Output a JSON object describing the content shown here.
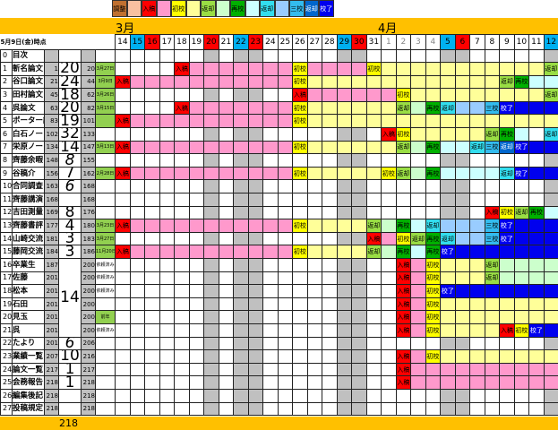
{
  "legend": [
    {
      "label": "調整",
      "color": "#c07030"
    },
    {
      "label": "",
      "color": "#f8c0a0"
    },
    {
      "label": "入稿",
      "color": "#ff0000"
    },
    {
      "label": "",
      "color": "#ff99cc"
    },
    {
      "label": "初校",
      "color": "#ffff00"
    },
    {
      "label": "",
      "color": "#ffff99"
    },
    {
      "label": "返却",
      "color": "#99dd44"
    },
    {
      "label": "",
      "color": "#ccffcc"
    },
    {
      "label": "再校",
      "color": "#00b000"
    },
    {
      "label": "",
      "color": "#ccffff"
    },
    {
      "label": "返却",
      "color": "#33ddee"
    },
    {
      "label": "",
      "color": "#99ccff"
    },
    {
      "label": "三校",
      "color": "#33bbee"
    },
    {
      "label": "返却",
      "color": "#0066cc"
    },
    {
      "label": "校了",
      "color": "#0000ee"
    }
  ],
  "months": {
    "march": "3月",
    "april": "4月"
  },
  "header_label": "5月9日(金)時点",
  "dates": [
    "14",
    "15",
    "16",
    "17",
    "18",
    "19",
    "20",
    "21",
    "22",
    "23",
    "24",
    "25",
    "26",
    "27",
    "28",
    "29",
    "30",
    "31",
    "1",
    "2",
    "3",
    "4",
    "5",
    "6",
    "7",
    "8",
    "9",
    "10",
    "11",
    "12"
  ],
  "date_colors": {
    "1": "#00b0f0",
    "2": "#ff0000",
    "6": "#ff0000",
    "8": "#00b0f0",
    "9": "#ff0000",
    "15": "#00b0f0",
    "16": "#ff0000",
    "22": "#00b0f0",
    "23": "#ff0000",
    "29": "#00b0f0"
  },
  "gray_cols": [
    6,
    8,
    9,
    15,
    16,
    22,
    23,
    29
  ],
  "colors": {
    "R": "#ff0000",
    "P": "#ff99cc",
    "Y": "#ffff00",
    "LY": "#ffff99",
    "G": "#99dd44",
    "PG": "#ccffcc",
    "DG": "#00b000",
    "LC": "#ccffff",
    "C": "#33ddee",
    "LB": "#99ccff",
    "T": "#33bbee",
    "DB": "#0066cc",
    "B": "#0000ee",
    "gray": "#c0c0c0",
    "label_green": "#92d050",
    "bar": "#ffc000"
  },
  "rows": [
    {
      "idx": "0",
      "name": "目次",
      "start": "",
      "count": "",
      "end": "",
      "label": "",
      "green": false,
      "spans": []
    },
    {
      "idx": "1",
      "name": "斬名論文",
      "start": "1",
      "count": "20",
      "end": "20",
      "label": "3月27日",
      "green": true,
      "spans": [
        [
          4,
          4,
          "R",
          "入稿"
        ],
        [
          5,
          11,
          "P"
        ],
        [
          12,
          12,
          "Y",
          "初校"
        ],
        [
          13,
          16,
          "P"
        ],
        [
          17,
          17,
          "Y",
          "初校"
        ],
        [
          18,
          28,
          "LY"
        ],
        [
          29,
          29,
          "G",
          "返却"
        ]
      ]
    },
    {
      "idx": "2",
      "name": "谷口論文",
      "start": "21",
      "count": "24",
      "end": "44",
      "label": "3月9日",
      "green": true,
      "spans": [
        [
          0,
          0,
          "R",
          "入稿"
        ],
        [
          1,
          11,
          "P"
        ],
        [
          12,
          12,
          "Y",
          "初校"
        ],
        [
          13,
          25,
          "LY"
        ],
        [
          26,
          26,
          "G",
          "返却"
        ],
        [
          27,
          27,
          "DG",
          "再校"
        ],
        [
          28,
          29,
          "LC"
        ]
      ]
    },
    {
      "idx": "3",
      "name": "田村論文",
      "start": "45",
      "count": "18",
      "end": "62",
      "label": "3月26日",
      "green": true,
      "spans": [
        [
          12,
          12,
          "R",
          "入稿"
        ],
        [
          13,
          18,
          "P"
        ],
        [
          19,
          19,
          "Y",
          "初校"
        ],
        [
          20,
          28,
          "LY"
        ],
        [
          29,
          29,
          "G",
          "返却"
        ]
      ]
    },
    {
      "idx": "4",
      "name": "呉論文",
      "start": "63",
      "count": "20",
      "end": "82",
      "label": "3月15日",
      "green": true,
      "spans": [
        [
          4,
          4,
          "R",
          "入稿"
        ],
        [
          5,
          11,
          "P"
        ],
        [
          12,
          12,
          "Y",
          "初校"
        ],
        [
          13,
          18,
          "LY"
        ],
        [
          19,
          19,
          "G",
          "返却"
        ],
        [
          20,
          20,
          "PG"
        ],
        [
          21,
          21,
          "DG",
          "再校"
        ],
        [
          22,
          22,
          "C",
          "返却"
        ],
        [
          23,
          24,
          "LB"
        ],
        [
          25,
          25,
          "T",
          "三校"
        ],
        [
          26,
          29,
          "B",
          "校了"
        ]
      ]
    },
    {
      "idx": "5",
      "name": "ポーター論文",
      "start": "83",
      "count": "19",
      "end": "101",
      "label": "",
      "green": true,
      "spans": [
        [
          0,
          0,
          "R",
          "入稿"
        ],
        [
          1,
          11,
          "P"
        ],
        [
          12,
          12,
          "Y",
          "初校"
        ],
        [
          13,
          29,
          "LY"
        ]
      ]
    },
    {
      "idx": "6",
      "name": "白石ノート",
      "start": "102",
      "count": "32",
      "end": "133",
      "label": "",
      "green": false,
      "spans": [
        [
          18,
          18,
          "R",
          "入稿"
        ],
        [
          19,
          19,
          "Y",
          "初校"
        ],
        [
          20,
          24,
          "LY"
        ],
        [
          25,
          25,
          "G",
          "返却"
        ],
        [
          26,
          26,
          "DG",
          "再校"
        ],
        [
          27,
          27,
          "LC"
        ],
        [
          29,
          29,
          "C",
          "返却"
        ]
      ]
    },
    {
      "idx": "7",
      "name": "栄原ノート",
      "start": "134",
      "count": "14",
      "end": "147",
      "label": "3月13日",
      "green": true,
      "spans": [
        [
          0,
          0,
          "R",
          "入稿"
        ],
        [
          1,
          11,
          "P"
        ],
        [
          12,
          12,
          "Y",
          "初校"
        ],
        [
          13,
          18,
          "LY"
        ],
        [
          19,
          19,
          "G",
          "返却"
        ],
        [
          20,
          20,
          "PG"
        ],
        [
          21,
          21,
          "DG",
          "再校"
        ],
        [
          22,
          23,
          "LC"
        ],
        [
          24,
          24,
          "C",
          "返却"
        ],
        [
          25,
          25,
          "T",
          "三校"
        ],
        [
          26,
          26,
          "DB",
          "返却"
        ],
        [
          27,
          29,
          "B",
          "校了"
        ]
      ]
    },
    {
      "idx": "8",
      "name": "齊藤余暇",
      "start": "148",
      "count": "8",
      "end": "155",
      "label": "",
      "green": false,
      "spans": []
    },
    {
      "idx": "9",
      "name": "谷稿介",
      "start": "156",
      "count": "7",
      "end": "162",
      "label": "2月28日",
      "green": true,
      "spans": [
        [
          0,
          0,
          "R",
          "入稿"
        ],
        [
          1,
          11,
          "P"
        ],
        [
          12,
          12,
          "Y",
          "初校"
        ],
        [
          13,
          17,
          "LY"
        ],
        [
          18,
          18,
          "Y",
          "初校"
        ],
        [
          19,
          19,
          "G",
          "返却"
        ],
        [
          20,
          20,
          "PG"
        ],
        [
          21,
          21,
          "DG",
          "再校"
        ],
        [
          22,
          25,
          "LC"
        ],
        [
          26,
          26,
          "C",
          "返却"
        ],
        [
          27,
          29,
          "B",
          "校了"
        ]
      ]
    },
    {
      "idx": "10",
      "name": "合同調査",
      "start": "163",
      "count": "6",
      "end": "168",
      "label": "",
      "green": false,
      "spans": []
    },
    {
      "idx": "11",
      "name": "齊藤講演",
      "start": "168",
      "count": "",
      "end": "168",
      "label": "",
      "green": false,
      "spans": []
    },
    {
      "idx": "12",
      "name": "吉田測量",
      "start": "169",
      "count": "8",
      "end": "176",
      "label": "",
      "green": false,
      "spans": [
        [
          25,
          25,
          "R",
          "入稿"
        ],
        [
          26,
          26,
          "Y",
          "初校"
        ],
        [
          27,
          27,
          "G",
          "返却"
        ],
        [
          28,
          28,
          "DG",
          "再校"
        ],
        [
          29,
          29,
          "LC"
        ]
      ]
    },
    {
      "idx": "13",
      "name": "齊藤書評",
      "start": "177",
      "count": "4",
      "end": "180",
      "label": "3月23日",
      "green": true,
      "spans": [
        [
          0,
          0,
          "R",
          "入稿"
        ],
        [
          1,
          11,
          "P"
        ],
        [
          12,
          12,
          "Y",
          "初校"
        ],
        [
          13,
          16,
          "LY"
        ],
        [
          17,
          17,
          "G",
          "返却"
        ],
        [
          18,
          18,
          "PG"
        ],
        [
          19,
          19,
          "DG",
          "再校"
        ],
        [
          20,
          20,
          "LC"
        ],
        [
          21,
          21,
          "C",
          "返却"
        ],
        [
          22,
          24,
          "LB"
        ],
        [
          25,
          25,
          "T",
          "三校"
        ],
        [
          26,
          29,
          "B",
          "校了"
        ]
      ]
    },
    {
      "idx": "14",
      "name": "山崎交流",
      "start": "181",
      "count": "3",
      "end": "183",
      "label": "3月27日",
      "green": true,
      "spans": [
        [
          17,
          17,
          "R",
          "入稿"
        ],
        [
          18,
          18,
          "P"
        ],
        [
          19,
          19,
          "Y",
          "初校"
        ],
        [
          20,
          20,
          "G",
          "返却"
        ],
        [
          21,
          21,
          "DG",
          "再校"
        ],
        [
          22,
          22,
          "C",
          "返却"
        ],
        [
          23,
          24,
          "LB"
        ],
        [
          25,
          25,
          "T",
          "三校"
        ],
        [
          26,
          29,
          "B",
          "校了"
        ]
      ]
    },
    {
      "idx": "15",
      "name": "藤岡交流",
      "start": "184",
      "count": "3",
      "end": "186",
      "label": "11月20日",
      "green": true,
      "spans": [
        [
          0,
          0,
          "R",
          "入稿"
        ],
        [
          1,
          11,
          "P"
        ],
        [
          12,
          12,
          "Y",
          "初校"
        ],
        [
          13,
          16,
          "LY"
        ],
        [
          17,
          17,
          "G",
          "返却"
        ],
        [
          18,
          18,
          "PG"
        ],
        [
          19,
          19,
          "DG",
          "再校"
        ],
        [
          20,
          20,
          "LC"
        ],
        [
          21,
          21,
          "DG",
          "再校"
        ],
        [
          22,
          29,
          "B",
          "校了"
        ]
      ]
    },
    {
      "idx": "16",
      "name": "卒業生",
      "start": "187",
      "count": "14",
      "end": "200",
      "label": "依頼済み",
      "green": false,
      "spans": [
        [
          19,
          19,
          "R",
          "入稿"
        ],
        [
          20,
          20,
          "P"
        ],
        [
          21,
          21,
          "Y",
          "初校"
        ],
        [
          22,
          24,
          "LY"
        ],
        [
          25,
          25,
          "G",
          "返却"
        ],
        [
          26,
          29,
          "PG"
        ]
      ]
    },
    {
      "idx": "17",
      "name": "佐藤",
      "start": "201",
      "count": "",
      "end": "200",
      "label": "依頼済み",
      "green": false,
      "spans": [
        [
          19,
          19,
          "R",
          "入稿"
        ],
        [
          20,
          20,
          "P"
        ],
        [
          21,
          21,
          "Y",
          "初校"
        ],
        [
          22,
          24,
          "LY"
        ],
        [
          25,
          25,
          "G",
          "返却"
        ],
        [
          26,
          29,
          "PG"
        ]
      ]
    },
    {
      "idx": "18",
      "name": "松本",
      "start": "201",
      "count": "",
      "end": "200",
      "label": "依頼済み",
      "green": false,
      "spans": [
        [
          19,
          19,
          "R",
          "入稿"
        ],
        [
          20,
          20,
          "P"
        ],
        [
          21,
          21,
          "Y",
          "初校"
        ],
        [
          22,
          29,
          "B",
          "校了"
        ]
      ]
    },
    {
      "idx": "19",
      "name": "石田",
      "start": "201",
      "count": "",
      "end": "200",
      "label": "",
      "green": false,
      "spans": [
        [
          19,
          19,
          "R",
          "入稿"
        ],
        [
          20,
          20,
          "P"
        ],
        [
          21,
          21,
          "Y",
          "初校"
        ],
        [
          22,
          29,
          "LY"
        ]
      ]
    },
    {
      "idx": "20",
      "name": "見玉",
      "start": "201",
      "count": "",
      "end": "200",
      "label": "前年",
      "green": true,
      "spans": [
        [
          19,
          19,
          "R",
          "入稿"
        ],
        [
          20,
          20,
          "P"
        ],
        [
          21,
          21,
          "Y",
          "初校"
        ],
        [
          22,
          29,
          "LY"
        ]
      ]
    },
    {
      "idx": "21",
      "name": "呉",
      "start": "201",
      "count": "",
      "end": "200",
      "label": "依頼済み",
      "green": false,
      "spans": [
        [
          19,
          19,
          "R",
          "入稿"
        ],
        [
          20,
          20,
          "P"
        ],
        [
          21,
          21,
          "Y",
          "初校"
        ],
        [
          22,
          25,
          "LY"
        ],
        [
          26,
          26,
          "R",
          "入稿"
        ],
        [
          27,
          27,
          "Y",
          "初校"
        ],
        [
          28,
          29,
          "B",
          "校了"
        ]
      ]
    },
    {
      "idx": "22",
      "name": "たより",
      "start": "201",
      "count": "6",
      "end": "206",
      "label": "",
      "green": false,
      "spans": []
    },
    {
      "idx": "23",
      "name": "業績一覧",
      "start": "207",
      "count": "10",
      "end": "216",
      "label": "",
      "green": false,
      "spans": [
        [
          19,
          19,
          "R",
          "入稿"
        ],
        [
          20,
          20,
          "P"
        ],
        [
          21,
          21,
          "Y",
          "初校"
        ],
        [
          22,
          29,
          "LY"
        ]
      ]
    },
    {
      "idx": "24",
      "name": "論文一覧",
      "start": "217",
      "count": "1",
      "end": "217",
      "label": "",
      "green": false,
      "spans": [
        [
          19,
          19,
          "R",
          "入稿"
        ],
        [
          20,
          29,
          "P"
        ]
      ]
    },
    {
      "idx": "25",
      "name": "会務報告",
      "start": "218",
      "count": "1",
      "end": "218",
      "label": "",
      "green": false,
      "spans": [
        [
          19,
          19,
          "R",
          "入稿"
        ],
        [
          20,
          29,
          "P"
        ]
      ]
    },
    {
      "idx": "26",
      "name": "編集後記",
      "start": "218",
      "count": "",
      "end": "218",
      "label": "",
      "green": false,
      "spans": []
    },
    {
      "idx": "27",
      "name": "投稿規定",
      "start": "218",
      "count": "",
      "end": "218",
      "label": "",
      "green": false,
      "spans": []
    }
  ],
  "footer_total": "218"
}
